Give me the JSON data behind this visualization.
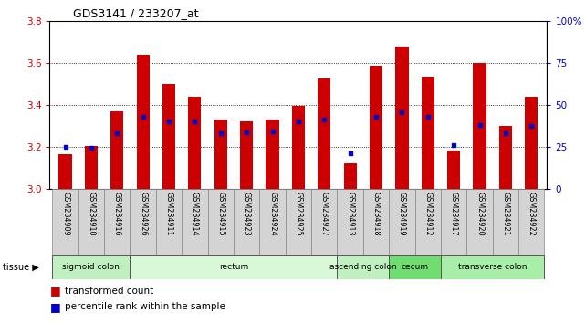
{
  "title": "GDS3141 / 233207_at",
  "samples": [
    "GSM234909",
    "GSM234910",
    "GSM234916",
    "GSM234926",
    "GSM234911",
    "GSM234914",
    "GSM234915",
    "GSM234923",
    "GSM234924",
    "GSM234925",
    "GSM234927",
    "GSM234913",
    "GSM234918",
    "GSM234919",
    "GSM234912",
    "GSM234917",
    "GSM234920",
    "GSM234921",
    "GSM234922"
  ],
  "bar_heights": [
    3.165,
    3.205,
    3.37,
    3.64,
    3.5,
    3.44,
    3.33,
    3.32,
    3.33,
    3.395,
    3.525,
    3.12,
    3.585,
    3.68,
    3.535,
    3.185,
    3.6,
    3.3,
    3.44
  ],
  "percentile_values": [
    3.2,
    3.195,
    3.265,
    3.345,
    3.32,
    3.32,
    3.265,
    3.27,
    3.275,
    3.32,
    3.33,
    3.17,
    3.345,
    3.365,
    3.345,
    3.21,
    3.305,
    3.265,
    3.3
  ],
  "bar_color": "#cc0000",
  "dot_color": "#0000cc",
  "ymin": 3.0,
  "ymax": 3.8,
  "yticks": [
    3.0,
    3.2,
    3.4,
    3.6,
    3.8
  ],
  "right_yticks": [
    0,
    25,
    50,
    75,
    100
  ],
  "right_yticklabels": [
    "0",
    "25",
    "50",
    "75",
    "100%"
  ],
  "tissue_groups": [
    {
      "label": "sigmoid colon",
      "start": 0,
      "end": 3
    },
    {
      "label": "rectum",
      "start": 3,
      "end": 11
    },
    {
      "label": "ascending colon",
      "start": 11,
      "end": 13
    },
    {
      "label": "cecum",
      "start": 13,
      "end": 15
    },
    {
      "label": "transverse colon",
      "start": 15,
      "end": 19
    }
  ],
  "tissue_colors": {
    "sigmoid colon": "#c0f0c0",
    "rectum": "#d8f8d8",
    "ascending colon": "#c0f0c0",
    "cecum": "#70dd70",
    "transverse colon": "#a8eda8"
  },
  "legend_bar_label": "transformed count",
  "legend_dot_label": "percentile rank within the sample",
  "axis_color_left": "#cc0000",
  "axis_color_right": "#0000cc"
}
